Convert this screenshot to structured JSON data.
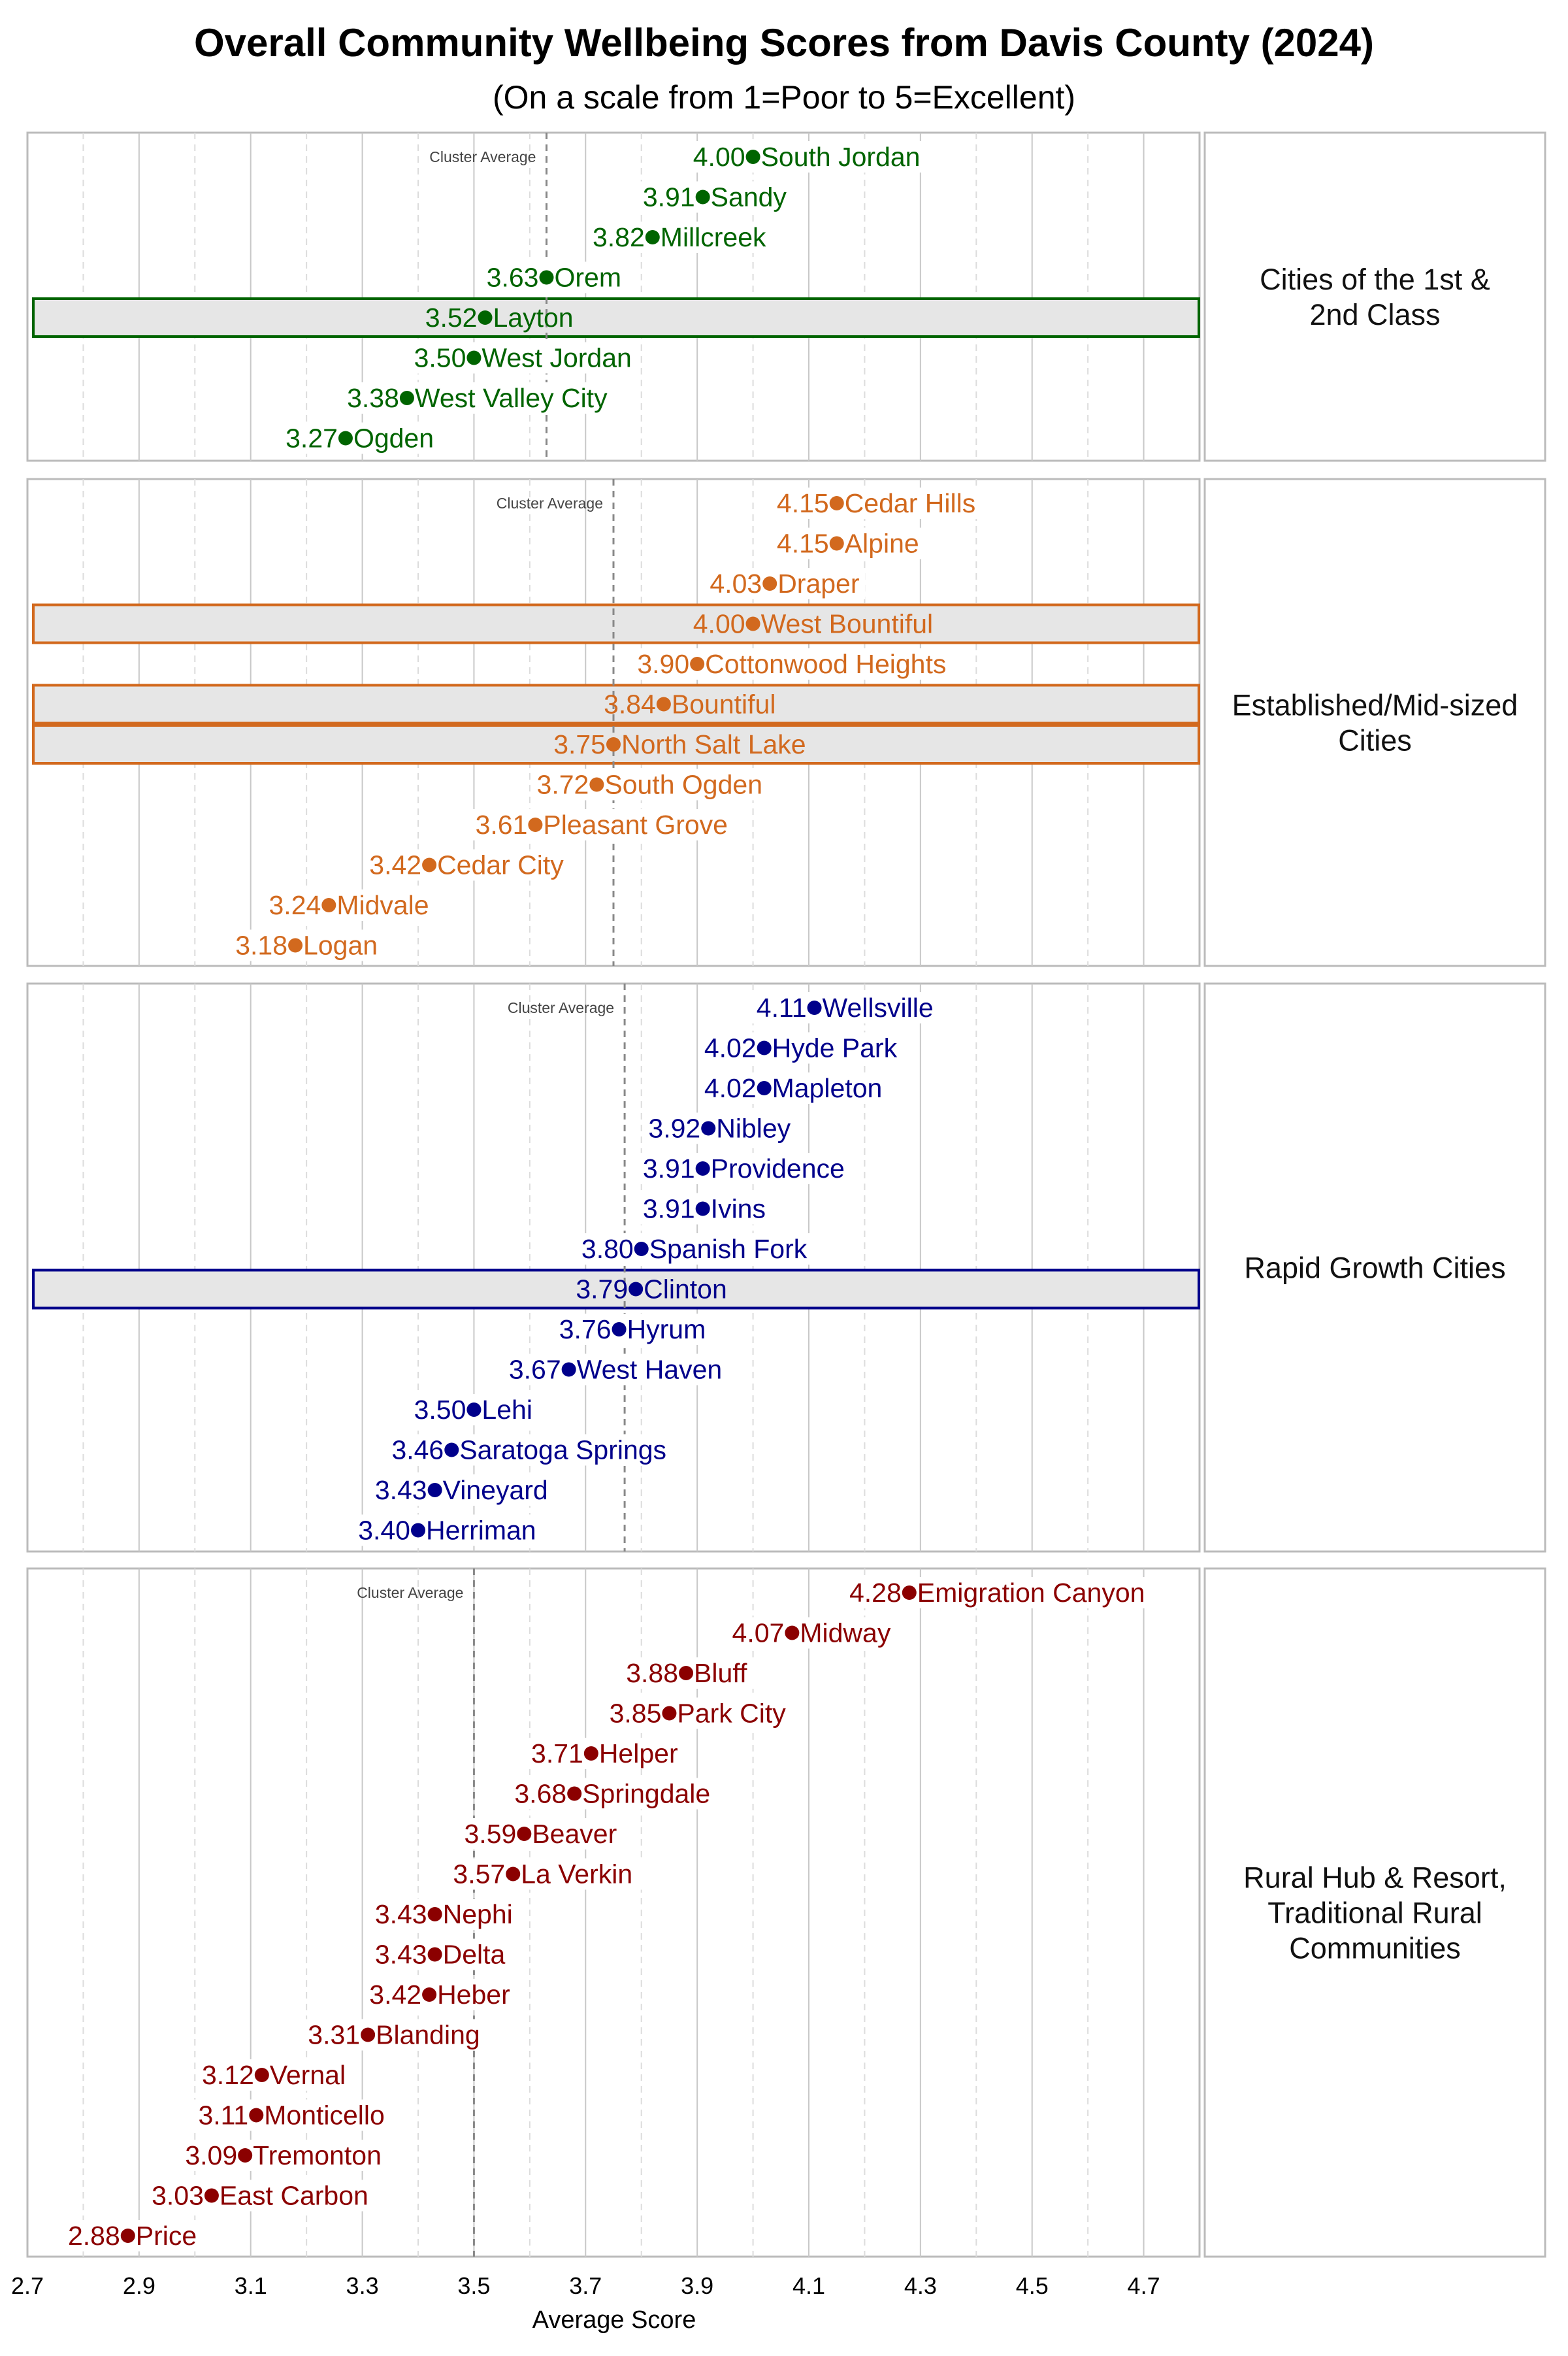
{
  "chart_data": {
    "type": "scatter",
    "title": "Overall Community Wellbeing Scores from Davis County (2024)",
    "subtitle": "(On a scale from 1=Poor to 5=Excellent)",
    "xlabel": "Average Score",
    "xlim": [
      2.7,
      4.8
    ],
    "xticks": [
      "2.7",
      "2.9",
      "3.1",
      "3.3",
      "3.5",
      "3.7",
      "3.9",
      "4.1",
      "4.3",
      "4.5",
      "4.7"
    ],
    "grid": true,
    "average_label": "Cluster Average",
    "panels": [
      {
        "name": "Cities of the 1st & 2nd Class",
        "name_lines": [
          "Cities of the 1st &",
          "2nd Class"
        ],
        "color": "#006400",
        "cluster_average": 3.63,
        "points": [
          {
            "city": "South Jordan",
            "value": 4.0
          },
          {
            "city": "Sandy",
            "value": 3.91
          },
          {
            "city": "Millcreek",
            "value": 3.82
          },
          {
            "city": "Orem",
            "value": 3.63
          },
          {
            "city": "Layton",
            "value": 3.52,
            "highlight": true
          },
          {
            "city": "West Jordan",
            "value": 3.5
          },
          {
            "city": "West Valley City",
            "value": 3.38
          },
          {
            "city": "Ogden",
            "value": 3.27
          }
        ]
      },
      {
        "name": "Established/Mid-sized Cities",
        "name_lines": [
          "Established/Mid-sized",
          "Cities"
        ],
        "color": "#D2691E",
        "cluster_average": 3.75,
        "points": [
          {
            "city": "Cedar Hills",
            "value": 4.15
          },
          {
            "city": "Alpine",
            "value": 4.15
          },
          {
            "city": "Draper",
            "value": 4.03
          },
          {
            "city": "West Bountiful",
            "value": 4.0,
            "highlight": true
          },
          {
            "city": "Cottonwood Heights",
            "value": 3.9
          },
          {
            "city": "Bountiful",
            "value": 3.84,
            "highlight": true
          },
          {
            "city": "North Salt Lake",
            "value": 3.75,
            "highlight": true
          },
          {
            "city": "South Ogden",
            "value": 3.72
          },
          {
            "city": "Pleasant Grove",
            "value": 3.61
          },
          {
            "city": "Cedar City",
            "value": 3.42
          },
          {
            "city": "Midvale",
            "value": 3.24
          },
          {
            "city": "Logan",
            "value": 3.18
          }
        ]
      },
      {
        "name": "Rapid Growth Cities",
        "name_lines": [
          "Rapid Growth Cities"
        ],
        "color": "#00008B",
        "cluster_average": 3.77,
        "points": [
          {
            "city": "Wellsville",
            "value": 4.11
          },
          {
            "city": "Hyde Park",
            "value": 4.02
          },
          {
            "city": "Mapleton",
            "value": 4.02
          },
          {
            "city": "Nibley",
            "value": 3.92
          },
          {
            "city": "Providence",
            "value": 3.91
          },
          {
            "city": "Ivins",
            "value": 3.91
          },
          {
            "city": "Spanish Fork",
            "value": 3.8
          },
          {
            "city": "Clinton",
            "value": 3.79,
            "highlight": true
          },
          {
            "city": "Hyrum",
            "value": 3.76
          },
          {
            "city": "West Haven",
            "value": 3.67
          },
          {
            "city": "Lehi",
            "value": 3.5
          },
          {
            "city": "Saratoga Springs",
            "value": 3.46
          },
          {
            "city": "Vineyard",
            "value": 3.43
          },
          {
            "city": "Herriman",
            "value": 3.4
          }
        ]
      },
      {
        "name": "Rural Hub & Resort, Traditional Rural Communities",
        "name_lines": [
          "Rural Hub & Resort,",
          "Traditional Rural",
          "Communities"
        ],
        "color": "#8B0000",
        "cluster_average": 3.5,
        "points": [
          {
            "city": "Emigration Canyon",
            "value": 4.28
          },
          {
            "city": "Midway",
            "value": 4.07
          },
          {
            "city": "Bluff",
            "value": 3.88
          },
          {
            "city": "Park City",
            "value": 3.85
          },
          {
            "city": "Helper",
            "value": 3.71
          },
          {
            "city": "Springdale",
            "value": 3.68
          },
          {
            "city": "Beaver",
            "value": 3.59
          },
          {
            "city": "La Verkin",
            "value": 3.57
          },
          {
            "city": "Nephi",
            "value": 3.43
          },
          {
            "city": "Delta",
            "value": 3.43
          },
          {
            "city": "Heber",
            "value": 3.42
          },
          {
            "city": "Blanding",
            "value": 3.31
          },
          {
            "city": "Vernal",
            "value": 3.12
          },
          {
            "city": "Monticello",
            "value": 3.11
          },
          {
            "city": "Tremonton",
            "value": 3.09
          },
          {
            "city": "East Carbon",
            "value": 3.03
          },
          {
            "city": "Price",
            "value": 2.88
          }
        ]
      }
    ]
  }
}
